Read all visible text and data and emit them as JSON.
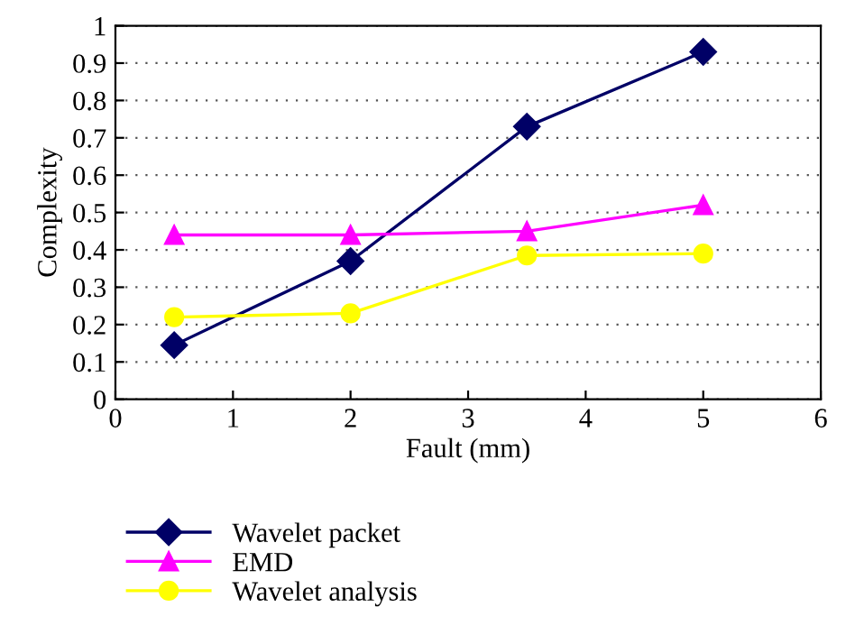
{
  "chart_data": {
    "type": "line",
    "xlabel": "Fault (mm)",
    "ylabel": "Complexity",
    "x": [
      0.5,
      2,
      3.5,
      5
    ],
    "series": [
      {
        "name": "Wavelet packet",
        "color": "#000066",
        "marker": "diamond",
        "values": [
          0.145,
          0.37,
          0.73,
          0.93
        ]
      },
      {
        "name": "EMD",
        "color": "#ff00ff",
        "marker": "triangle",
        "values": [
          0.44,
          0.44,
          0.45,
          0.52
        ]
      },
      {
        "name": "Wavelet analysis",
        "color": "#ffff00",
        "marker": "circle",
        "values": [
          0.22,
          0.23,
          0.385,
          0.39
        ]
      }
    ],
    "xlim": [
      0,
      6
    ],
    "xticks": [
      0,
      1,
      2,
      3,
      4,
      5,
      6
    ],
    "ylim": [
      0,
      1
    ],
    "yticks": [
      0,
      0.1,
      0.2,
      0.3,
      0.4,
      0.5,
      0.6,
      0.7,
      0.8,
      0.9,
      1
    ],
    "grid": "y",
    "legend": "bottom",
    "line_style": "solid"
  }
}
